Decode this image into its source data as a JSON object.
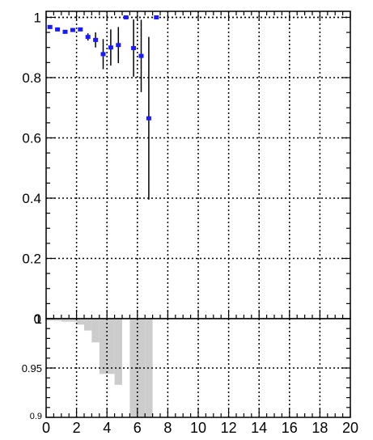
{
  "colors": {
    "marker": "#1a1aff",
    "error_bar": "#000000",
    "fill": "#cccccc",
    "grid": "#000000",
    "frame": "#000000"
  },
  "chart_data": [
    {
      "type": "scatter",
      "title": "",
      "xlabel": "",
      "ylabel": "",
      "xlim": [
        0,
        20
      ],
      "ylim": [
        0,
        1.02
      ],
      "grid": true,
      "y_ticks": [
        "0",
        "0.2",
        "0.4",
        "0.6",
        "0.8",
        "1"
      ],
      "series": [
        {
          "points": [
            {
              "x": 0.25,
              "y": 0.968,
              "err": 0.006
            },
            {
              "x": 0.75,
              "y": 0.96,
              "err": 0.006
            },
            {
              "x": 1.25,
              "y": 0.952,
              "err": 0.006
            },
            {
              "x": 1.75,
              "y": 0.958,
              "err": 0.006
            },
            {
              "x": 2.25,
              "y": 0.96,
              "err": 0.006
            },
            {
              "x": 2.75,
              "y": 0.935,
              "err": 0.012
            },
            {
              "x": 3.25,
              "y": 0.925,
              "err": 0.025
            },
            {
              "x": 3.75,
              "y": 0.878,
              "err": 0.05
            },
            {
              "x": 4.25,
              "y": 0.9,
              "err": 0.06
            },
            {
              "x": 4.75,
              "y": 0.908,
              "err": 0.06
            },
            {
              "x": 5.25,
              "y": 1.0,
              "err": 0.0
            },
            {
              "x": 5.75,
              "y": 0.898,
              "err": 0.095
            },
            {
              "x": 6.25,
              "y": 0.872,
              "err": 0.12
            },
            {
              "x": 6.75,
              "y": 0.665,
              "err": 0.27
            },
            {
              "x": 7.25,
              "y": 1.0,
              "err": 0.0
            }
          ]
        }
      ]
    },
    {
      "type": "area",
      "title": "",
      "xlabel": "",
      "ylabel": "",
      "xlim": [
        0,
        20
      ],
      "ylim": [
        0.9,
        1.0
      ],
      "grid": true,
      "y_ticks": [
        "0.9",
        "0.95",
        "1"
      ],
      "x_ticks": [
        "0",
        "2",
        "4",
        "6",
        "8",
        "10",
        "12",
        "14",
        "16",
        "18",
        "20"
      ],
      "bins": [
        {
          "x0": 0.0,
          "x1": 0.5,
          "y": 0.998
        },
        {
          "x0": 0.5,
          "x1": 1.0,
          "y": 0.998
        },
        {
          "x0": 1.0,
          "x1": 1.5,
          "y": 0.997
        },
        {
          "x0": 1.5,
          "x1": 2.0,
          "y": 0.997
        },
        {
          "x0": 2.0,
          "x1": 2.5,
          "y": 0.994
        },
        {
          "x0": 2.5,
          "x1": 3.0,
          "y": 0.988
        },
        {
          "x0": 3.0,
          "x1": 3.5,
          "y": 0.976
        },
        {
          "x0": 3.5,
          "x1": 4.0,
          "y": 0.944
        },
        {
          "x0": 4.0,
          "x1": 4.5,
          "y": 0.944
        },
        {
          "x0": 4.5,
          "x1": 5.0,
          "y": 0.933
        },
        {
          "x0": 5.0,
          "x1": 5.5,
          "y": 1.0
        },
        {
          "x0": 5.5,
          "x1": 6.0,
          "y": 0.9
        },
        {
          "x0": 6.0,
          "x1": 6.5,
          "y": 0.9
        },
        {
          "x0": 6.5,
          "x1": 7.0,
          "y": 0.9
        },
        {
          "x0": 7.0,
          "x1": 7.5,
          "y": 1.0
        }
      ]
    }
  ]
}
